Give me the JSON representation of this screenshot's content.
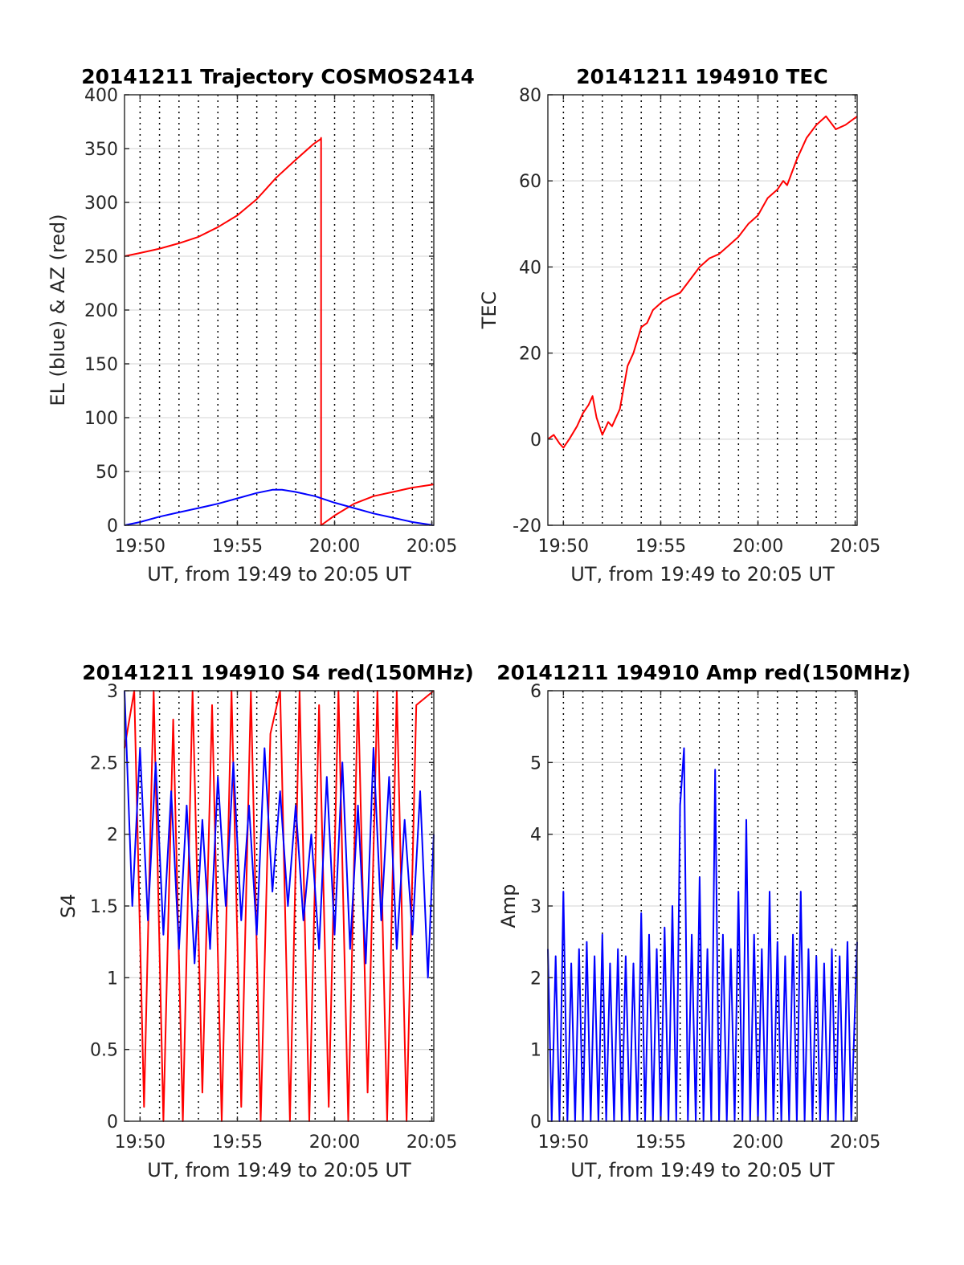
{
  "chart_data": [
    {
      "id": "traj",
      "type": "line",
      "title": "20141211 Trajectory COSMOS2414",
      "xlabel": "UT, from 19:49 to 20:05 UT",
      "ylabel": "EL (blue) & AZ (red)",
      "xlim": [
        19.82,
        20.085
      ],
      "ylim": [
        0,
        400
      ],
      "yticks": [
        0,
        50,
        100,
        150,
        200,
        250,
        300,
        350,
        400
      ],
      "ytick_labels": [
        "0",
        "50",
        "100",
        "150",
        "200",
        "250",
        "300",
        "350",
        "400"
      ],
      "xticks": [
        19.8333,
        19.9167,
        20.0,
        20.0833
      ],
      "xtick_labels": [
        "19:50",
        "19:55",
        "20:00",
        "20:05"
      ],
      "grid": true,
      "series": [
        {
          "color": "#ff0000",
          "x": [
            19.82,
            19.8333,
            19.85,
            19.8667,
            19.8833,
            19.9,
            19.9167,
            19.9333,
            19.9417,
            19.95,
            19.965,
            19.9817,
            19.9883,
            19.9884,
            19.9884,
            20.0,
            20.0167,
            20.0333,
            20.05,
            20.0667,
            20.085
          ],
          "y": [
            250,
            253,
            257,
            262,
            268,
            277,
            288,
            303,
            313,
            323,
            338,
            354,
            359,
            360,
            0,
            9,
            20,
            27,
            31,
            35,
            38
          ]
        },
        {
          "color": "#0000ff",
          "x": [
            19.82,
            19.8333,
            19.85,
            19.8667,
            19.8833,
            19.9,
            19.9167,
            19.9333,
            19.9467,
            19.955,
            19.9667,
            19.9833,
            20.0,
            20.0167,
            20.0333,
            20.05,
            20.0667,
            20.085
          ],
          "y": [
            0,
            3,
            8,
            12,
            16,
            20,
            25,
            30,
            33,
            33,
            31,
            27,
            21,
            16,
            11,
            7,
            3,
            0
          ]
        }
      ]
    },
    {
      "id": "tec",
      "type": "line",
      "title": "20141211 194910 TEC",
      "xlabel": "UT, from 19:49 to 20:05 UT",
      "ylabel": "TEC",
      "xlim": [
        19.82,
        20.085
      ],
      "ylim": [
        -20,
        80
      ],
      "yticks": [
        -20,
        0,
        20,
        40,
        60,
        80
      ],
      "ytick_labels": [
        "-20",
        "0",
        "20",
        "40",
        "60",
        "80"
      ],
      "xticks": [
        19.8333,
        19.9167,
        20.0,
        20.0833
      ],
      "xtick_labels": [
        "19:50",
        "19:55",
        "20:00",
        "20:05"
      ],
      "grid": true,
      "series": [
        {
          "color": "#ff0000",
          "x": [
            19.82,
            19.825,
            19.83,
            19.8333,
            19.8383,
            19.845,
            19.85,
            19.855,
            19.8583,
            19.8617,
            19.8667,
            19.8717,
            19.875,
            19.8817,
            19.885,
            19.8883,
            19.8933,
            19.9,
            19.905,
            19.91,
            19.9183,
            19.925,
            19.9333,
            19.9417,
            19.95,
            19.9583,
            19.9667,
            19.975,
            19.9833,
            19.9917,
            20.0,
            20.0083,
            20.0167,
            20.0217,
            20.025,
            20.0333,
            20.0417,
            20.05,
            20.0583,
            20.0667,
            20.075,
            20.085
          ],
          "y": [
            0,
            1,
            -1,
            -2,
            0,
            3,
            6,
            8,
            10,
            5,
            1,
            4,
            3,
            7,
            12,
            17,
            20,
            26,
            27,
            30,
            32,
            33,
            34,
            37,
            40,
            42,
            43,
            45,
            47,
            50,
            52,
            56,
            58,
            60,
            59,
            65,
            70,
            73,
            75,
            72,
            73,
            75
          ]
        }
      ]
    },
    {
      "id": "s4",
      "type": "line",
      "title": "20141211 194910 S4 red(150MHz)",
      "xlabel": "UT, from 19:49 to 20:05 UT",
      "ylabel": "S4",
      "xlim": [
        19.82,
        20.085
      ],
      "ylim": [
        0,
        3
      ],
      "yticks": [
        0,
        0.5,
        1,
        1.5,
        2,
        2.5,
        3
      ],
      "ytick_labels": [
        "0",
        "0.5",
        "1",
        "1.5",
        "2",
        "2.5",
        "3"
      ],
      "xticks": [
        19.8333,
        19.9167,
        20.0,
        20.0833
      ],
      "xtick_labels": [
        "19:50",
        "19:55",
        "20:00",
        "20:05"
      ],
      "grid": true,
      "series": [
        {
          "color": "#ff0000",
          "x": [
            19.82,
            19.8283,
            19.8367,
            19.845,
            19.8533,
            19.8617,
            19.87,
            19.8783,
            19.8867,
            19.895,
            19.9033,
            19.9117,
            19.92,
            19.9283,
            19.9367,
            19.945,
            19.9533,
            19.9617,
            19.97,
            19.9783,
            19.9867,
            19.995,
            20.0033,
            20.0117,
            20.02,
            20.0283,
            20.0367,
            20.045,
            20.0533,
            20.0617,
            20.07,
            20.085
          ],
          "y": [
            2.6,
            3.0,
            0.1,
            3.0,
            0.0,
            2.8,
            0.0,
            3.0,
            0.2,
            2.9,
            0.0,
            3.0,
            0.1,
            3.0,
            0.0,
            2.7,
            3.0,
            0.0,
            3.0,
            0.0,
            2.9,
            0.1,
            3.0,
            0.0,
            3.0,
            0.2,
            3.0,
            0.0,
            3.0,
            0.0,
            2.9,
            3.0
          ]
        },
        {
          "color": "#0000ff",
          "x": [
            19.82,
            19.8267,
            19.8333,
            19.84,
            19.8467,
            19.8533,
            19.86,
            19.8667,
            19.8733,
            19.88,
            19.8867,
            19.8933,
            19.9,
            19.9067,
            19.9133,
            19.92,
            19.9267,
            19.9333,
            19.94,
            19.9467,
            19.9533,
            19.96,
            19.9667,
            19.9733,
            19.98,
            19.9867,
            19.9933,
            20.0,
            20.0067,
            20.0133,
            20.02,
            20.0267,
            20.0333,
            20.04,
            20.0467,
            20.0533,
            20.06,
            20.0667,
            20.0733,
            20.08,
            20.085
          ],
          "y": [
            3.0,
            1.5,
            2.6,
            1.4,
            2.5,
            1.3,
            2.3,
            1.2,
            2.2,
            1.1,
            2.1,
            1.2,
            2.4,
            1.5,
            2.5,
            1.4,
            2.2,
            1.3,
            2.6,
            1.6,
            2.3,
            1.5,
            2.2,
            1.4,
            2.0,
            1.2,
            2.4,
            1.3,
            2.5,
            1.2,
            2.2,
            1.1,
            2.6,
            1.4,
            2.4,
            1.2,
            2.1,
            1.3,
            2.3,
            1.0,
            2.0
          ]
        }
      ]
    },
    {
      "id": "amp",
      "type": "line",
      "title": "20141211 194910 Amp red(150MHz)",
      "xlabel": "UT, from 19:49 to 20:05 UT",
      "ylabel": "Amp",
      "xlim": [
        19.82,
        20.085
      ],
      "ylim": [
        0,
        6
      ],
      "yticks": [
        0,
        1,
        2,
        3,
        4,
        5,
        6
      ],
      "ytick_labels": [
        "0",
        "1",
        "2",
        "3",
        "4",
        "5",
        "6"
      ],
      "xticks": [
        19.8333,
        19.9167,
        20.0,
        20.0833
      ],
      "xtick_labels": [
        "19:50",
        "19:55",
        "20:00",
        "20:05"
      ],
      "grid": true,
      "series": [
        {
          "color": "#0000ff",
          "x": [
            19.82,
            19.8233,
            19.8267,
            19.83,
            19.8333,
            19.8367,
            19.84,
            19.8433,
            19.8467,
            19.85,
            19.8533,
            19.8567,
            19.86,
            19.8633,
            19.8667,
            19.87,
            19.8733,
            19.8767,
            19.88,
            19.8833,
            19.8867,
            19.89,
            19.8933,
            19.8967,
            19.9,
            19.9033,
            19.9067,
            19.91,
            19.9133,
            19.9167,
            19.92,
            19.9233,
            19.9267,
            19.93,
            19.9333,
            19.9367,
            19.94,
            19.9433,
            19.9467,
            19.95,
            19.9533,
            19.9567,
            19.96,
            19.9633,
            19.9667,
            19.97,
            19.9733,
            19.9767,
            19.98,
            19.9833,
            19.9867,
            19.99,
            19.9933,
            19.9967,
            20.0,
            20.0033,
            20.0067,
            20.01,
            20.0133,
            20.0167,
            20.02,
            20.0233,
            20.0267,
            20.03,
            20.0333,
            20.0367,
            20.04,
            20.0433,
            20.0467,
            20.05,
            20.0533,
            20.0567,
            20.06,
            20.0633,
            20.0667,
            20.07,
            20.0733,
            20.0767,
            20.08,
            20.085
          ],
          "y": [
            2.4,
            0,
            2.3,
            0,
            3.2,
            0,
            2.2,
            0,
            2.4,
            0,
            2.5,
            0,
            2.3,
            0,
            2.6,
            0,
            2.2,
            0,
            2.4,
            0,
            2.3,
            0,
            2.2,
            0,
            2.9,
            0,
            2.6,
            0,
            2.4,
            0,
            2.7,
            0,
            3.0,
            0,
            4.4,
            5.2,
            0,
            2.6,
            0,
            3.4,
            0,
            2.4,
            0,
            4.9,
            0,
            2.6,
            0,
            2.4,
            0,
            3.2,
            0,
            4.2,
            0,
            2.6,
            0,
            2.4,
            0,
            3.2,
            0,
            2.5,
            0,
            2.3,
            0,
            2.6,
            0,
            3.2,
            0,
            2.4,
            0,
            2.3,
            0,
            2.2,
            0,
            2.4,
            0,
            2.3,
            0,
            2.5,
            0,
            2.5
          ]
        }
      ]
    }
  ]
}
